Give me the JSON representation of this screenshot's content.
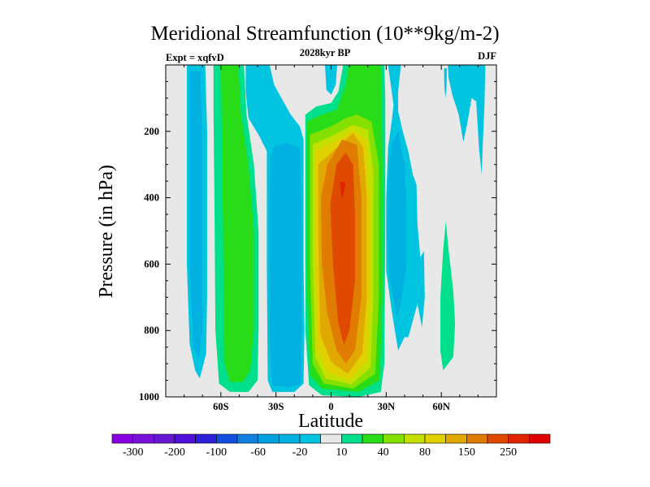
{
  "chart_data": {
    "type": "contour",
    "title": "Meridional Streamfunction (10**9kg/m-2)",
    "subtitle": "2028kyr BP",
    "left_label": "Expt = xqfvD",
    "right_label": "DJF",
    "xlabel": "Latitude",
    "ylabel": "Pressure (in hPa)",
    "xlim": [
      -90,
      90
    ],
    "ylim": [
      0,
      1000
    ],
    "y_inverted": true,
    "xticks": [
      {
        "value": -60,
        "label": "60S"
      },
      {
        "value": -30,
        "label": "30S"
      },
      {
        "value": 0,
        "label": "0"
      },
      {
        "value": 30,
        "label": "30N"
      },
      {
        "value": 60,
        "label": "60N"
      }
    ],
    "yticks": [
      {
        "value": 200,
        "label": "200"
      },
      {
        "value": 400,
        "label": "400"
      },
      {
        "value": 600,
        "label": "600"
      },
      {
        "value": 800,
        "label": "800"
      },
      {
        "value": 1000,
        "label": "1000"
      }
    ],
    "x_minor_step": 10,
    "y_minor_step": 50,
    "contour_levels": [
      -300,
      -250,
      -200,
      -150,
      -100,
      -80,
      -60,
      -40,
      -20,
      -10,
      10,
      20,
      40,
      60,
      80,
      100,
      150,
      200,
      250,
      300
    ],
    "colorbar_labels": [
      {
        "level": -300,
        "label": "-300"
      },
      {
        "level": -200,
        "label": "-200"
      },
      {
        "level": -100,
        "label": "-100"
      },
      {
        "level": -60,
        "label": "-60"
      },
      {
        "level": -20,
        "label": "-20"
      },
      {
        "level": 10,
        "label": "10"
      },
      {
        "level": 40,
        "label": "40"
      },
      {
        "level": 80,
        "label": "80"
      },
      {
        "level": 150,
        "label": "150"
      },
      {
        "level": 250,
        "label": "250"
      }
    ],
    "colors": [
      "#8800e0",
      "#7810d8",
      "#6618d0",
      "#5010d8",
      "#2c20d8",
      "#1450e0",
      "#1080e0",
      "#00a0e0",
      "#00b0e0",
      "#00c4e0",
      "#e8e8e8",
      "#00e08c",
      "#28dc18",
      "#84e000",
      "#c4e000",
      "#e0d000",
      "#e0a800",
      "#e07c00",
      "#e04a00",
      "#e02400",
      "#e00000"
    ],
    "background_band_color": "#e8e8e8",
    "regions": [
      {
        "name": "south-polar-cell-outer",
        "band": [
          -20,
          -10
        ],
        "points": [
          [
            -78.5,
            0
          ],
          [
            -68.5,
            0
          ],
          [
            -67.5,
            200
          ],
          [
            -67.5,
            700
          ],
          [
            -68,
            870
          ],
          [
            -71.5,
            945
          ],
          [
            -74,
            920
          ],
          [
            -77,
            840
          ],
          [
            -78.5,
            600
          ],
          [
            -78.5,
            200
          ]
        ]
      },
      {
        "name": "south-polar-cell-inner",
        "band": [
          -40,
          -20
        ],
        "points": [
          [
            -77,
            20
          ],
          [
            -71,
            20
          ],
          [
            -70,
            300
          ],
          [
            -70,
            800
          ],
          [
            -72,
            885
          ],
          [
            -75,
            850
          ],
          [
            -77,
            600
          ]
        ]
      },
      {
        "name": "ferrel-like-positive-outer",
        "band": [
          10,
          20
        ],
        "points": [
          [
            -64,
            0
          ],
          [
            -47.5,
            0
          ],
          [
            -46,
            150
          ],
          [
            -42,
            300
          ],
          [
            -39.5,
            500
          ],
          [
            -39.5,
            800
          ],
          [
            -40,
            950
          ],
          [
            -45,
            985
          ],
          [
            -55,
            985
          ],
          [
            -61,
            960
          ],
          [
            -63,
            800
          ],
          [
            -63.5,
            400
          ],
          [
            -64,
            150
          ]
        ]
      },
      {
        "name": "ferrel-like-positive-inner",
        "band": [
          20,
          40
        ],
        "points": [
          [
            -60,
            0
          ],
          [
            -50.5,
            0
          ],
          [
            -49,
            150
          ],
          [
            -45,
            300
          ],
          [
            -42,
            500
          ],
          [
            -42,
            800
          ],
          [
            -44,
            920
          ],
          [
            -48,
            955
          ],
          [
            -55,
            955
          ],
          [
            -58,
            900
          ],
          [
            -58.6,
            600
          ],
          [
            -59.5,
            200
          ]
        ]
      },
      {
        "name": "south-subtropical-negative-outer",
        "band": [
          -20,
          -10
        ],
        "points": [
          [
            -46.5,
            0
          ],
          [
            -33.5,
            0
          ],
          [
            -31,
            60
          ],
          [
            -26,
            110
          ],
          [
            -22,
            150
          ],
          [
            -17,
            185
          ],
          [
            -15,
            225
          ],
          [
            -15,
            600
          ],
          [
            -14.5,
            800
          ],
          [
            -15,
            960
          ],
          [
            -20,
            985
          ],
          [
            -32,
            985
          ],
          [
            -34.5,
            950
          ],
          [
            -35,
            600
          ],
          [
            -35,
            260
          ],
          [
            -39,
            215
          ],
          [
            -45,
            160
          ],
          [
            -46.5,
            80
          ]
        ]
      },
      {
        "name": "south-subtropical-negative-inner",
        "band": [
          -40,
          -20
        ],
        "points": [
          [
            -31,
            245
          ],
          [
            -24,
            235
          ],
          [
            -17,
            250
          ],
          [
            -16,
            500
          ],
          [
            -16,
            800
          ],
          [
            -16.5,
            960
          ],
          [
            -22,
            970
          ],
          [
            -32,
            965
          ],
          [
            -33.5,
            800
          ],
          [
            -33.5,
            400
          ],
          [
            -33,
            280
          ]
        ]
      },
      {
        "name": "equator-top-negative",
        "band": [
          -20,
          -10
        ],
        "points": [
          [
            -3.3,
            0
          ],
          [
            3.3,
            0
          ],
          [
            2.5,
            60
          ],
          [
            0,
            90
          ],
          [
            -2.5,
            75
          ]
        ]
      },
      {
        "name": "hadley-cell-10",
        "band": [
          10,
          20
        ],
        "points": [
          [
            -14,
            150
          ],
          [
            -8,
            125
          ],
          [
            0,
            115
          ],
          [
            4,
            80
          ],
          [
            6.6,
            0
          ],
          [
            29,
            0
          ],
          [
            29.5,
            100
          ],
          [
            29.5,
            500
          ],
          [
            29,
            900
          ],
          [
            27,
            985
          ],
          [
            15,
            1000
          ],
          [
            -5,
            995
          ],
          [
            -12,
            965
          ],
          [
            -14,
            800
          ]
        ]
      },
      {
        "name": "hadley-cell-20",
        "band": [
          20,
          40
        ],
        "points": [
          [
            -13,
            170
          ],
          [
            -5,
            150
          ],
          [
            3,
            135
          ],
          [
            8,
            60
          ],
          [
            9.5,
            0
          ],
          [
            27,
            0
          ],
          [
            27.5,
            100
          ],
          [
            28,
            300
          ],
          [
            28,
            700
          ],
          [
            26.5,
            950
          ],
          [
            15,
            985
          ],
          [
            -5,
            975
          ],
          [
            -11.5,
            935
          ],
          [
            -13,
            700
          ]
        ]
      },
      {
        "name": "hadley-cell-40",
        "band": [
          40,
          60
        ],
        "points": [
          [
            -11.5,
            210
          ],
          [
            0,
            185
          ],
          [
            8,
            160
          ],
          [
            14,
            150
          ],
          [
            22,
            170
          ],
          [
            26,
            300
          ],
          [
            26,
            700
          ],
          [
            24,
            930
          ],
          [
            12,
            975
          ],
          [
            -4,
            960
          ],
          [
            -10,
            900
          ],
          [
            -11.5,
            600
          ]
        ]
      },
      {
        "name": "hadley-cell-60",
        "band": [
          60,
          80
        ],
        "points": [
          [
            -10,
            240
          ],
          [
            0,
            215
          ],
          [
            12,
            180
          ],
          [
            20,
            195
          ],
          [
            23,
            320
          ],
          [
            23,
            700
          ],
          [
            21.5,
            910
          ],
          [
            11,
            962
          ],
          [
            -3,
            945
          ],
          [
            -8.5,
            880
          ],
          [
            -10,
            600
          ]
        ]
      },
      {
        "name": "hadley-cell-80",
        "band": [
          80,
          100
        ],
        "points": [
          [
            -8.5,
            260
          ],
          [
            2,
            230
          ],
          [
            12,
            195
          ],
          [
            19,
            225
          ],
          [
            21,
            400
          ],
          [
            21,
            700
          ],
          [
            19.5,
            890
          ],
          [
            10,
            948
          ],
          [
            -2,
            925
          ],
          [
            -7.5,
            850
          ],
          [
            -8.5,
            600
          ]
        ]
      },
      {
        "name": "hadley-cell-100",
        "band": [
          100,
          150
        ],
        "points": [
          [
            -7,
            300
          ],
          [
            3,
            250
          ],
          [
            12,
            205
          ],
          [
            17.5,
            250
          ],
          [
            19.4,
            400
          ],
          [
            19.4,
            700
          ],
          [
            17,
            870
          ],
          [
            9,
            930
          ],
          [
            0,
            895
          ],
          [
            -6,
            810
          ],
          [
            -7,
            500
          ]
        ]
      },
      {
        "name": "hadley-cell-150",
        "band": [
          150,
          200
        ],
        "points": [
          [
            -5.5,
            400
          ],
          [
            -2,
            300
          ],
          [
            6,
            225
          ],
          [
            14,
            240
          ],
          [
            16.5,
            400
          ],
          [
            16.5,
            700
          ],
          [
            13,
            860
          ],
          [
            8,
            900
          ],
          [
            3,
            860
          ],
          [
            -2,
            750
          ],
          [
            -5,
            600
          ]
        ]
      },
      {
        "name": "hadley-cell-200",
        "band": [
          200,
          250
        ],
        "points": [
          [
            -0.5,
            420
          ],
          [
            3,
            300
          ],
          [
            8,
            264
          ],
          [
            12,
            300
          ],
          [
            13,
            450
          ],
          [
            13,
            650
          ],
          [
            10,
            800
          ],
          [
            7,
            843
          ],
          [
            4,
            780
          ],
          [
            1,
            600
          ]
        ]
      },
      {
        "name": "hadley-cell-core",
        "band": [
          250,
          300
        ],
        "points": [
          [
            5,
            350
          ],
          [
            8,
            355
          ],
          [
            6,
            405
          ],
          [
            5.5,
            385
          ]
        ]
      },
      {
        "name": "north-negative-outer",
        "band": [
          -20,
          -10
        ],
        "points": [
          [
            31,
            0
          ],
          [
            38,
            0
          ],
          [
            36.5,
            80
          ],
          [
            36.5,
            140
          ],
          [
            39,
            200
          ],
          [
            42,
            260
          ],
          [
            44.5,
            330
          ],
          [
            46.5,
            360
          ],
          [
            47,
            480
          ],
          [
            48.6,
            580
          ],
          [
            50.5,
            560
          ],
          [
            51,
            700
          ],
          [
            49.5,
            790
          ],
          [
            47,
            720
          ],
          [
            45,
            760
          ],
          [
            42,
            820
          ],
          [
            40,
            820
          ],
          [
            36.5,
            860
          ],
          [
            33,
            740
          ],
          [
            30,
            620
          ],
          [
            30,
            400
          ],
          [
            31,
            250
          ],
          [
            33,
            170
          ],
          [
            34,
            120
          ]
        ]
      },
      {
        "name": "north-negative-inner",
        "band": [
          -40,
          -20
        ],
        "points": [
          [
            33,
            240
          ],
          [
            36.5,
            200
          ],
          [
            40,
            300
          ],
          [
            41,
            450
          ],
          [
            41,
            600
          ],
          [
            38.5,
            700
          ],
          [
            36,
            760
          ],
          [
            32,
            650
          ],
          [
            30.5,
            500
          ],
          [
            31,
            350
          ]
        ]
      },
      {
        "name": "north-polar-negative",
        "band": [
          -20,
          -10
        ],
        "points": [
          [
            63.5,
            0
          ],
          [
            84,
            0
          ],
          [
            83.5,
            120
          ],
          [
            82.5,
            250
          ],
          [
            82,
            330
          ],
          [
            80.5,
            250
          ],
          [
            79,
            110
          ],
          [
            76.5,
            100
          ],
          [
            74,
            180
          ],
          [
            72,
            232
          ],
          [
            69.5,
            150
          ],
          [
            66,
            90
          ],
          [
            64,
            40
          ]
        ]
      },
      {
        "name": "north-polar-sliver",
        "band": [
          -20,
          -10
        ],
        "points": [
          [
            61.5,
            10
          ],
          [
            63,
            10
          ],
          [
            62.8,
            70
          ],
          [
            62.2,
            100
          ],
          [
            61.6,
            60
          ]
        ]
      },
      {
        "name": "north-positive",
        "band": [
          10,
          20
        ],
        "points": [
          [
            62.5,
            470
          ],
          [
            64,
            560
          ],
          [
            66.5,
            680
          ],
          [
            67.5,
            780
          ],
          [
            66.5,
            880
          ],
          [
            61,
            920
          ],
          [
            59.5,
            860
          ],
          [
            59.5,
            700
          ],
          [
            61,
            560
          ]
        ]
      }
    ]
  }
}
